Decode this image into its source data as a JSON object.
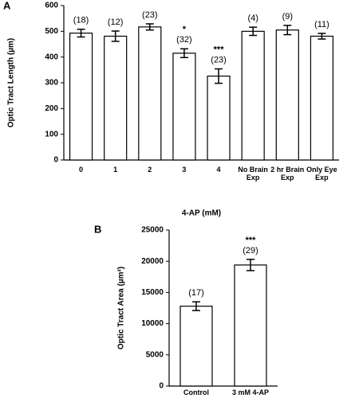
{
  "chart_data": [
    {
      "type": "bar",
      "panel_label": "A",
      "y_label": "Optic Tract Length (µm)",
      "x_label": "4-AP (mM)",
      "categories": [
        "0",
        "1",
        "2",
        "3",
        "4",
        "No Brain Exp",
        "2 hr Brain Exp",
        "Only Eye Exp"
      ],
      "values": [
        493,
        481,
        517,
        415,
        326,
        500,
        505,
        481
      ],
      "errors": [
        15,
        20,
        12,
        17,
        28,
        16,
        18,
        11
      ],
      "n_labels": [
        "(18)",
        "(12)",
        "(23)",
        "(32)",
        "(23)",
        "(4)",
        "(9)",
        "(11)"
      ],
      "sig_labels": [
        null,
        null,
        null,
        "*",
        "***",
        null,
        null,
        null
      ],
      "color": "#ffffff",
      "ylim": [
        0,
        600
      ],
      "yticks": [
        0,
        100,
        200,
        300,
        400,
        500,
        600
      ]
    },
    {
      "type": "bar",
      "panel_label": "B",
      "y_label": "Optic Tract Area (µm²)",
      "categories": [
        "Control",
        "3 mM 4-AP"
      ],
      "values": [
        12800,
        19400
      ],
      "errors": [
        700,
        900
      ],
      "n_labels": [
        "(17)",
        "(29)"
      ],
      "sig_labels": [
        null,
        "***"
      ],
      "color": "#ffffff",
      "ylim": [
        0,
        25000
      ],
      "yticks": [
        0,
        5000,
        10000,
        15000,
        20000,
        25000
      ]
    }
  ]
}
